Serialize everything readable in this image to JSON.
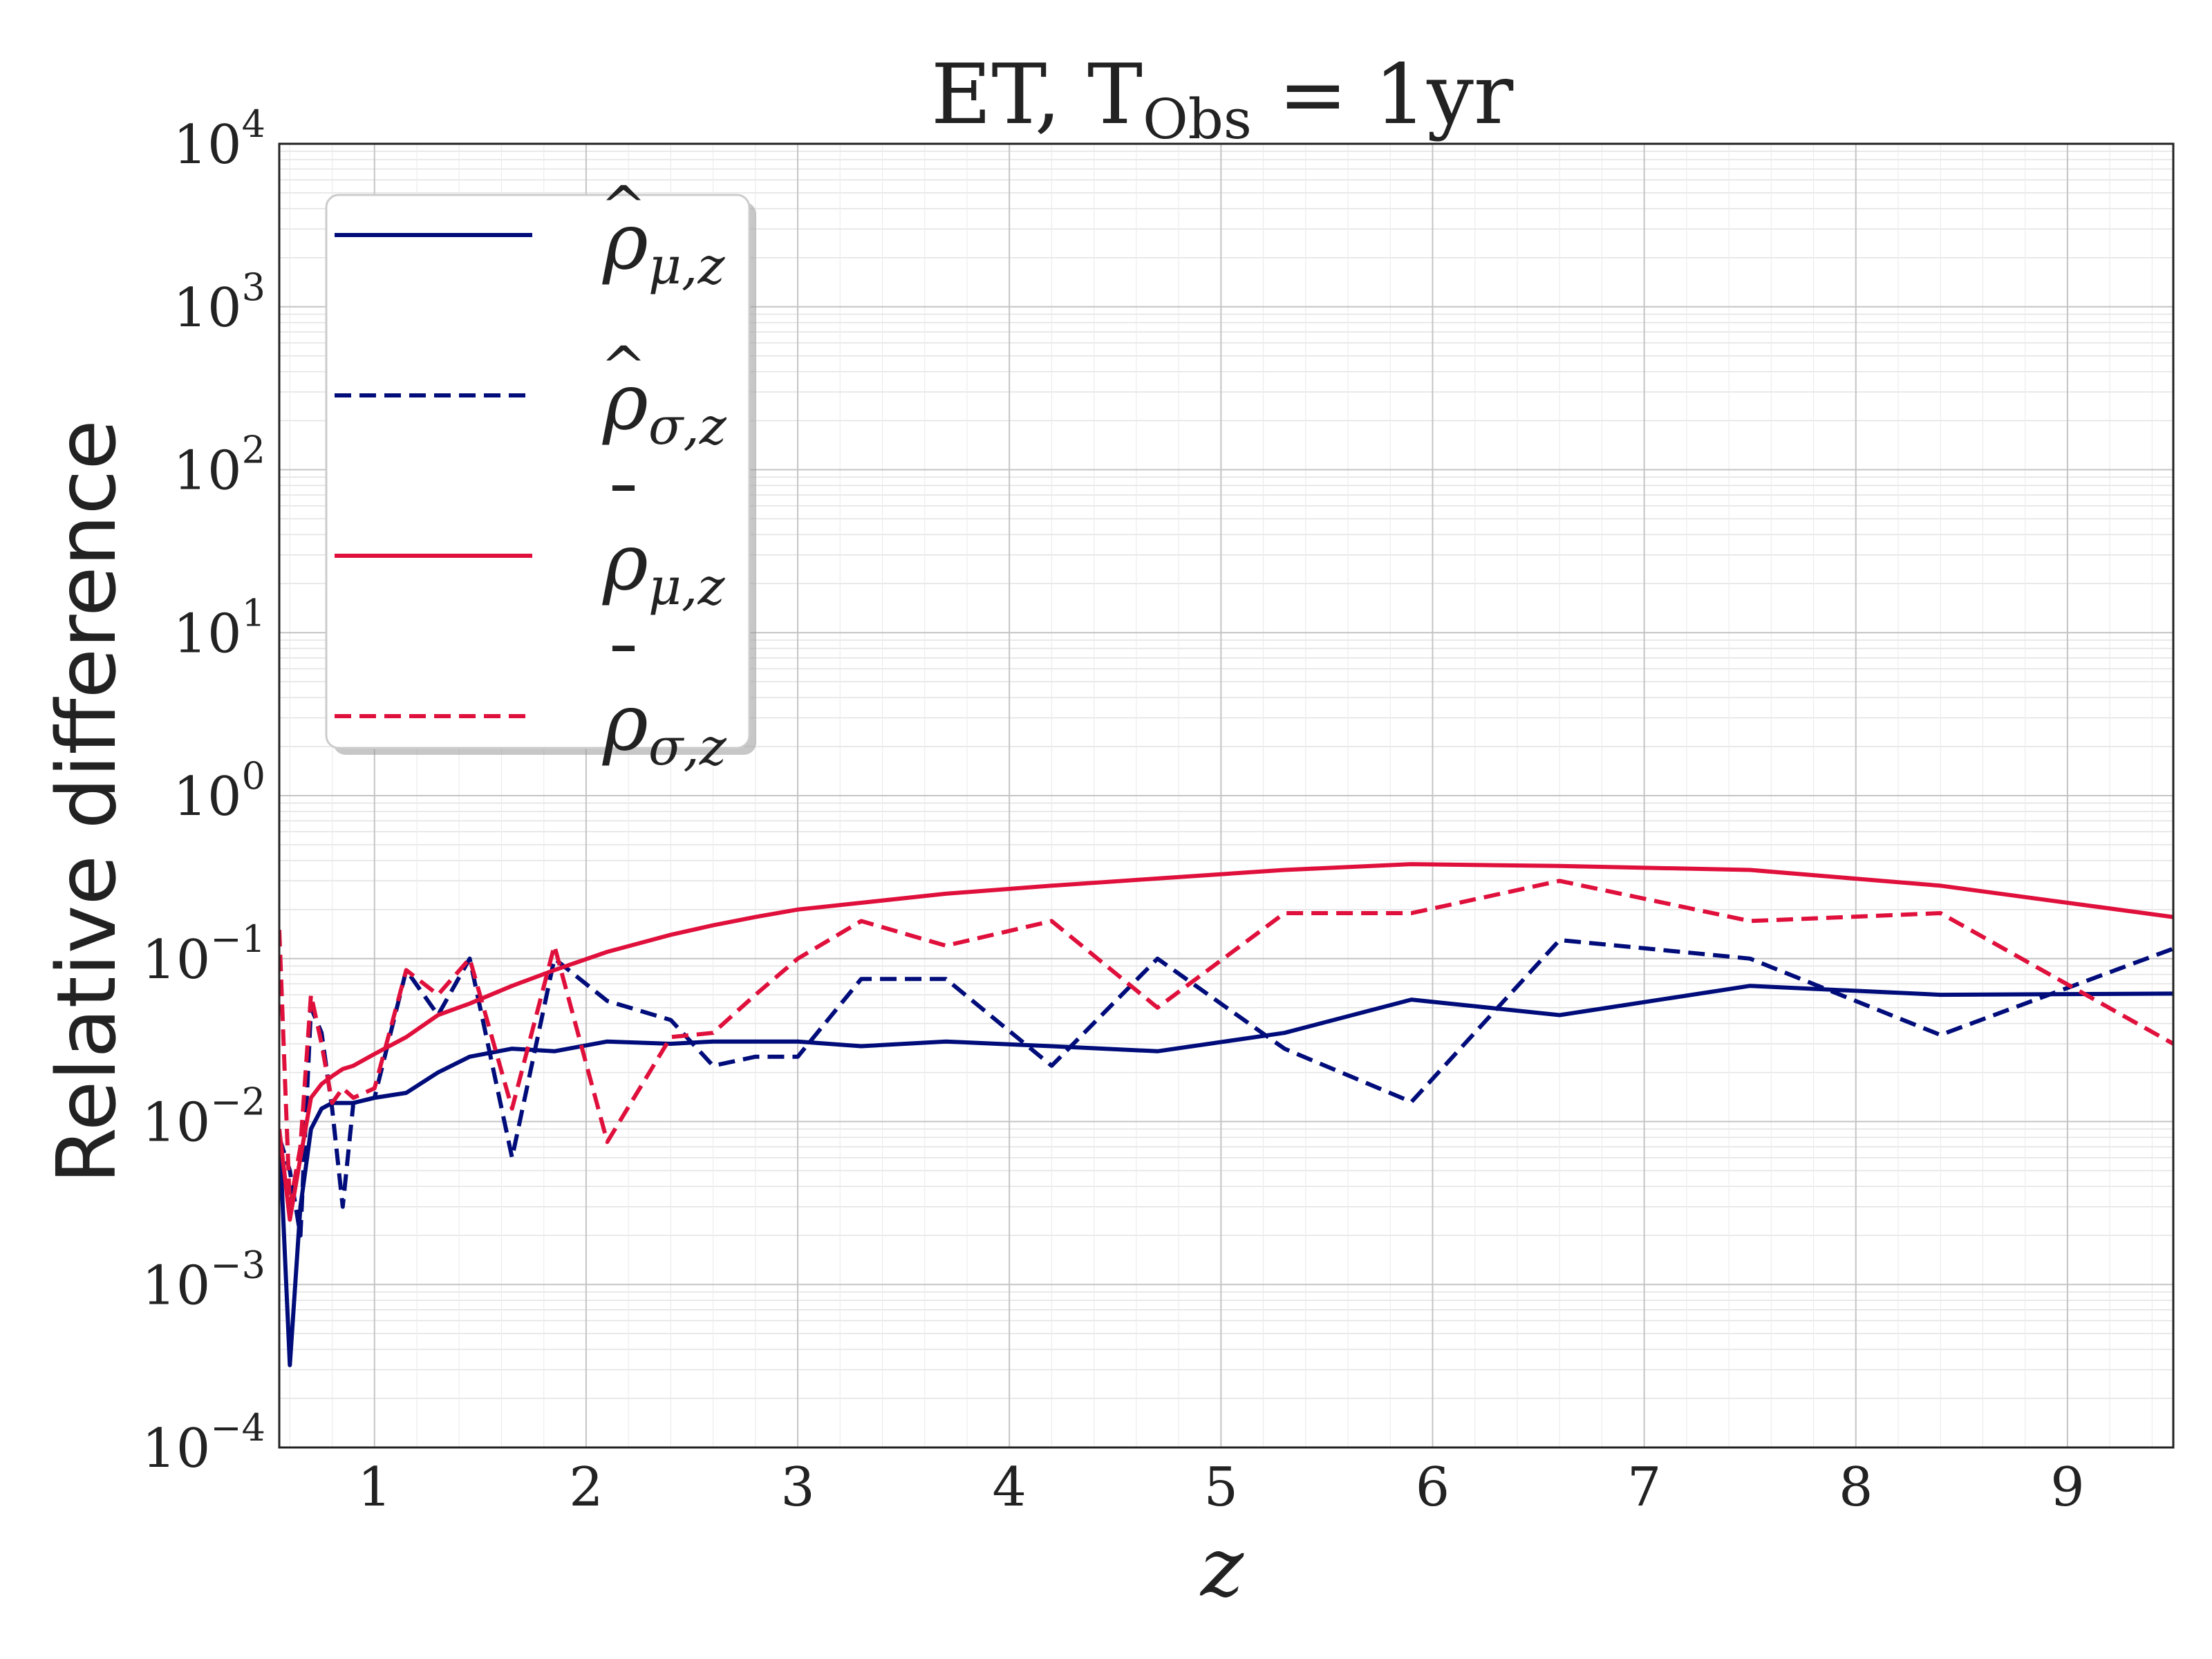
{
  "chart_data": {
    "type": "line",
    "title": {
      "main": "ET, T",
      "sub": "Obs",
      "tail": " = 1yr"
    },
    "xlabel": "z",
    "ylabel": "Relative difference",
    "xlim": [
      0.55,
      9.5
    ],
    "ylim": [
      0.0001,
      10000
    ],
    "yscale": "log",
    "grid": true,
    "legend_position": "upper-left",
    "x_ticks": [
      {
        "value": 1,
        "label": "1"
      },
      {
        "value": 2,
        "label": "2"
      },
      {
        "value": 3,
        "label": "3"
      },
      {
        "value": 4,
        "label": "4"
      },
      {
        "value": 5,
        "label": "5"
      },
      {
        "value": 6,
        "label": "6"
      },
      {
        "value": 7,
        "label": "7"
      },
      {
        "value": 8,
        "label": "8"
      },
      {
        "value": 9,
        "label": "9"
      }
    ],
    "y_ticks": [
      {
        "value": 0.0001,
        "base": "10",
        "exp": "−4"
      },
      {
        "value": 0.001,
        "base": "10",
        "exp": "−3"
      },
      {
        "value": 0.01,
        "base": "10",
        "exp": "−2"
      },
      {
        "value": 0.1,
        "base": "10",
        "exp": "−1"
      },
      {
        "value": 1,
        "base": "10",
        "exp": "0"
      },
      {
        "value": 10,
        "base": "10",
        "exp": "1"
      },
      {
        "value": 100,
        "base": "10",
        "exp": "2"
      },
      {
        "value": 1000,
        "base": "10",
        "exp": "3"
      },
      {
        "value": 10000,
        "base": "10",
        "exp": "4"
      }
    ],
    "series": [
      {
        "symbol": "ρ",
        "accent": "hat",
        "subscript": "μ,z",
        "color": "#000c7a",
        "dash": "solid",
        "x": [
          0.55,
          0.6,
          0.65,
          0.7,
          0.75,
          0.8,
          0.85,
          0.9,
          1.0,
          1.15,
          1.3,
          1.45,
          1.65,
          1.85,
          2.1,
          2.4,
          2.6,
          2.8,
          3.0,
          3.3,
          3.7,
          4.2,
          4.7,
          5.3,
          5.9,
          6.6,
          7.5,
          8.4,
          9.5
        ],
        "y": [
          0.009,
          0.00032,
          0.003,
          0.009,
          0.012,
          0.013,
          0.013,
          0.013,
          0.014,
          0.015,
          0.02,
          0.025,
          0.028,
          0.027,
          0.031,
          0.03,
          0.031,
          0.031,
          0.031,
          0.029,
          0.031,
          0.029,
          0.027,
          0.035,
          0.056,
          0.045,
          0.068,
          0.06,
          0.061
        ]
      },
      {
        "symbol": "ρ",
        "accent": "hat",
        "subscript": "σ,z",
        "color": "#000c7a",
        "dash": "dashed",
        "x": [
          0.55,
          0.6,
          0.65,
          0.7,
          0.75,
          0.8,
          0.85,
          0.9,
          1.0,
          1.15,
          1.3,
          1.45,
          1.65,
          1.85,
          2.1,
          2.4,
          2.6,
          2.8,
          3.0,
          3.3,
          3.7,
          4.2,
          4.7,
          5.3,
          5.9,
          6.6,
          7.5,
          8.4,
          9.5
        ],
        "y": [
          0.008,
          0.005,
          0.002,
          0.05,
          0.035,
          0.012,
          0.003,
          0.013,
          0.014,
          0.085,
          0.045,
          0.1,
          0.006,
          0.1,
          0.055,
          0.042,
          0.022,
          0.025,
          0.025,
          0.075,
          0.075,
          0.022,
          0.1,
          0.028,
          0.0132,
          0.13,
          0.1,
          0.034,
          0.115
        ]
      },
      {
        "symbol": "ρ",
        "accent": "bar",
        "subscript": "μ,z",
        "color": "#e0103c",
        "dash": "solid",
        "x": [
          0.55,
          0.6,
          0.65,
          0.7,
          0.75,
          0.8,
          0.85,
          0.9,
          1.0,
          1.15,
          1.3,
          1.45,
          1.65,
          1.85,
          2.1,
          2.4,
          2.6,
          2.8,
          3.0,
          3.3,
          3.7,
          4.2,
          4.7,
          5.3,
          5.9,
          6.6,
          7.5,
          8.4,
          9.5
        ],
        "y": [
          0.009,
          0.0025,
          0.006,
          0.014,
          0.017,
          0.019,
          0.021,
          0.022,
          0.026,
          0.033,
          0.045,
          0.053,
          0.068,
          0.085,
          0.11,
          0.14,
          0.16,
          0.18,
          0.2,
          0.22,
          0.25,
          0.28,
          0.31,
          0.35,
          0.38,
          0.37,
          0.35,
          0.28,
          0.18
        ]
      },
      {
        "symbol": "ρ",
        "accent": "bar",
        "subscript": "σ,z",
        "color": "#e0103c",
        "dash": "dashed",
        "x": [
          0.55,
          0.6,
          0.65,
          0.7,
          0.75,
          0.8,
          0.85,
          0.9,
          1.0,
          1.15,
          1.3,
          1.45,
          1.65,
          1.85,
          2.1,
          2.4,
          2.6,
          2.8,
          3.0,
          3.3,
          3.7,
          4.2,
          4.7,
          5.3,
          5.9,
          6.6,
          7.5,
          8.4,
          9.5
        ],
        "y": [
          0.15,
          0.003,
          0.007,
          0.06,
          0.03,
          0.013,
          0.016,
          0.014,
          0.016,
          0.085,
          0.06,
          0.1,
          0.012,
          0.12,
          0.0075,
          0.033,
          0.035,
          0.06,
          0.1,
          0.17,
          0.12,
          0.17,
          0.05,
          0.19,
          0.19,
          0.3,
          0.17,
          0.19,
          0.03
        ]
      }
    ]
  }
}
